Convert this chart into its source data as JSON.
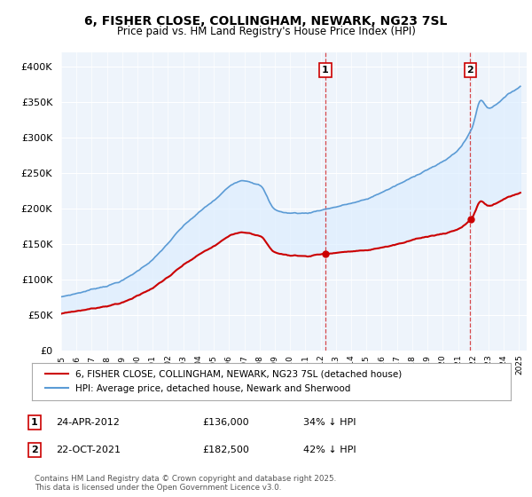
{
  "title_line1": "6, FISHER CLOSE, COLLINGHAM, NEWARK, NG23 7SL",
  "title_line2": "Price paid vs. HM Land Registry's House Price Index (HPI)",
  "legend_line1": "6, FISHER CLOSE, COLLINGHAM, NEWARK, NG23 7SL (detached house)",
  "legend_line2": "HPI: Average price, detached house, Newark and Sherwood",
  "annotation1_label": "1",
  "annotation1_date": "24-APR-2012",
  "annotation1_price": "£136,000",
  "annotation1_hpi": "34% ↓ HPI",
  "annotation2_label": "2",
  "annotation2_date": "22-OCT-2021",
  "annotation2_price": "£182,500",
  "annotation2_hpi": "42% ↓ HPI",
  "footnote": "Contains HM Land Registry data © Crown copyright and database right 2025.\nThis data is licensed under the Open Government Licence v3.0.",
  "hpi_color": "#5b9bd5",
  "hpi_fill_color": "#ddeeff",
  "price_color": "#cc0000",
  "annotation_color": "#cc0000",
  "background_color": "#ffffff",
  "plot_bg_color": "#eef4fb",
  "grid_color": "#ffffff",
  "ylim_min": 0,
  "ylim_max": 420000,
  "year_start": 1995,
  "year_end": 2025,
  "sale1_year": 2012.31,
  "sale1_price": 136000,
  "sale2_year": 2021.81,
  "sale2_price": 182500
}
